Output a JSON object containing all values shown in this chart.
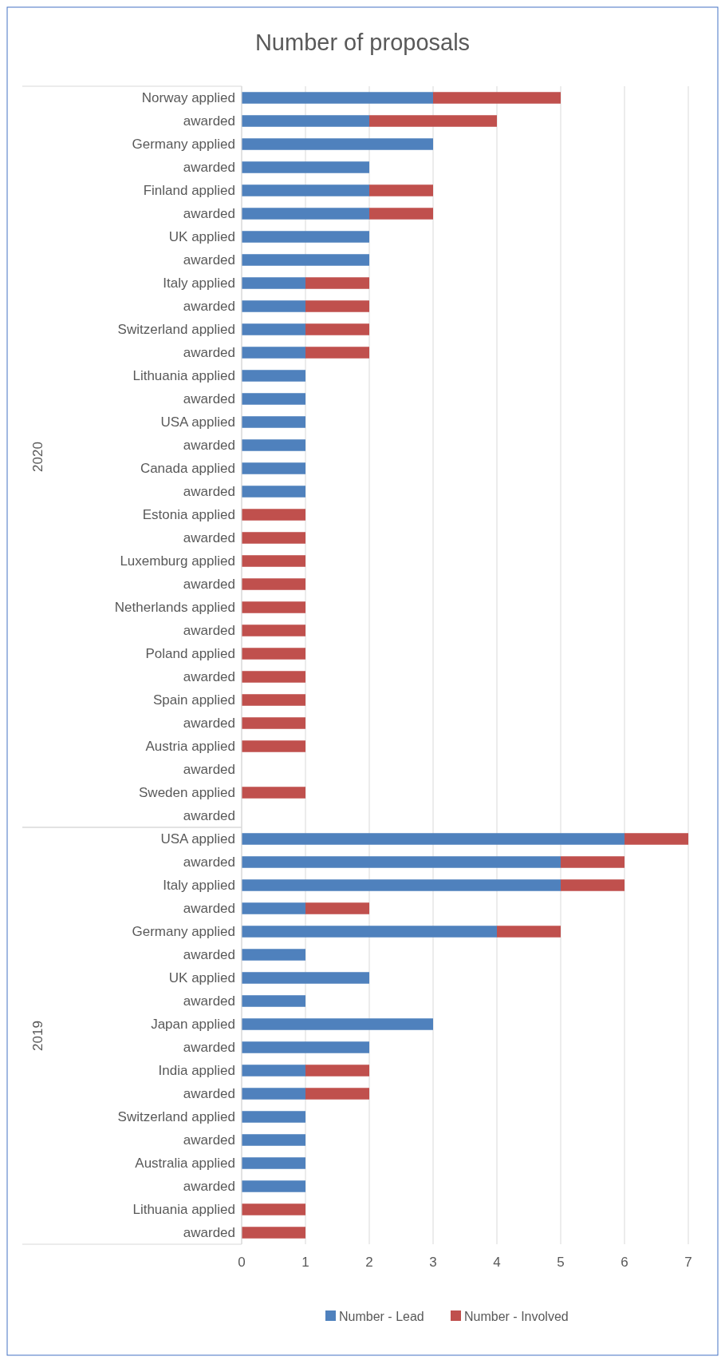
{
  "chart_data": [
    {
      "type": "bar",
      "orientation": "horizontal",
      "stacked": true,
      "title": "Number of proposals",
      "ylabel": "2020",
      "categories": [
        "Norway applied",
        "awarded",
        "Germany applied",
        "awarded",
        "Finland applied",
        "awarded",
        "UK applied",
        "awarded",
        "Italy applied",
        "awarded",
        "Switzerland applied",
        "awarded",
        "Lithuania applied",
        "awarded",
        "USA applied",
        "awarded",
        "Canada applied",
        "awarded",
        "Estonia applied",
        "awarded",
        "Luxemburg applied",
        "awarded",
        "Netherlands applied",
        "awarded",
        "Poland applied",
        "awarded",
        "Spain applied",
        "awarded",
        "Austria applied",
        "awarded",
        "Sweden applied",
        "awarded"
      ],
      "series": [
        {
          "color": "#4f81bd",
          "values": [
            3,
            2,
            3,
            2,
            2,
            2,
            2,
            2,
            1,
            1,
            1,
            1,
            1,
            1,
            1,
            1,
            1,
            1,
            0,
            0,
            0,
            0,
            0,
            0,
            0,
            0,
            0,
            0,
            0,
            0,
            0,
            0
          ]
        },
        {
          "color": "#c0504d",
          "values": [
            2,
            2,
            0,
            0,
            1,
            1,
            0,
            0,
            1,
            1,
            1,
            1,
            0,
            0,
            0,
            0,
            0,
            0,
            1,
            1,
            1,
            1,
            1,
            1,
            1,
            1,
            1,
            1,
            1,
            0,
            1,
            0
          ]
        }
      ],
      "xlim": [
        0,
        7
      ],
      "xticks": [
        0,
        1,
        2,
        3,
        4,
        5,
        6,
        7
      ],
      "grid": "x",
      "tick_labels": "y"
    },
    {
      "type": "bar",
      "orientation": "horizontal",
      "stacked": true,
      "ylabel": "2019",
      "categories": [
        "USA applied",
        "awarded",
        "Italy applied",
        "awarded",
        "Germany applied",
        "awarded",
        "UK applied",
        "awarded",
        "Japan applied",
        "awarded",
        "India applied",
        "awarded",
        "Switzerland applied",
        "awarded",
        "Australia applied",
        "awarded",
        "Lithuania applied",
        "awarded"
      ],
      "series": [
        {
          "name": "Number - Lead",
          "color": "#4f81bd",
          "values": [
            6,
            5,
            5,
            1,
            4,
            1,
            2,
            1,
            3,
            2,
            1,
            1,
            1,
            1,
            1,
            1,
            0,
            0
          ]
        },
        {
          "name": "Number - Involved",
          "color": "#c0504d",
          "values": [
            1,
            1,
            1,
            1,
            1,
            0,
            0,
            0,
            0,
            0,
            1,
            1,
            0,
            0,
            0,
            0,
            1,
            1
          ]
        }
      ],
      "xlim": [
        0,
        7
      ],
      "xticks": [
        0,
        1,
        2,
        3,
        4,
        5,
        6,
        7
      ],
      "grid": "x",
      "legend": "bottom"
    }
  ]
}
